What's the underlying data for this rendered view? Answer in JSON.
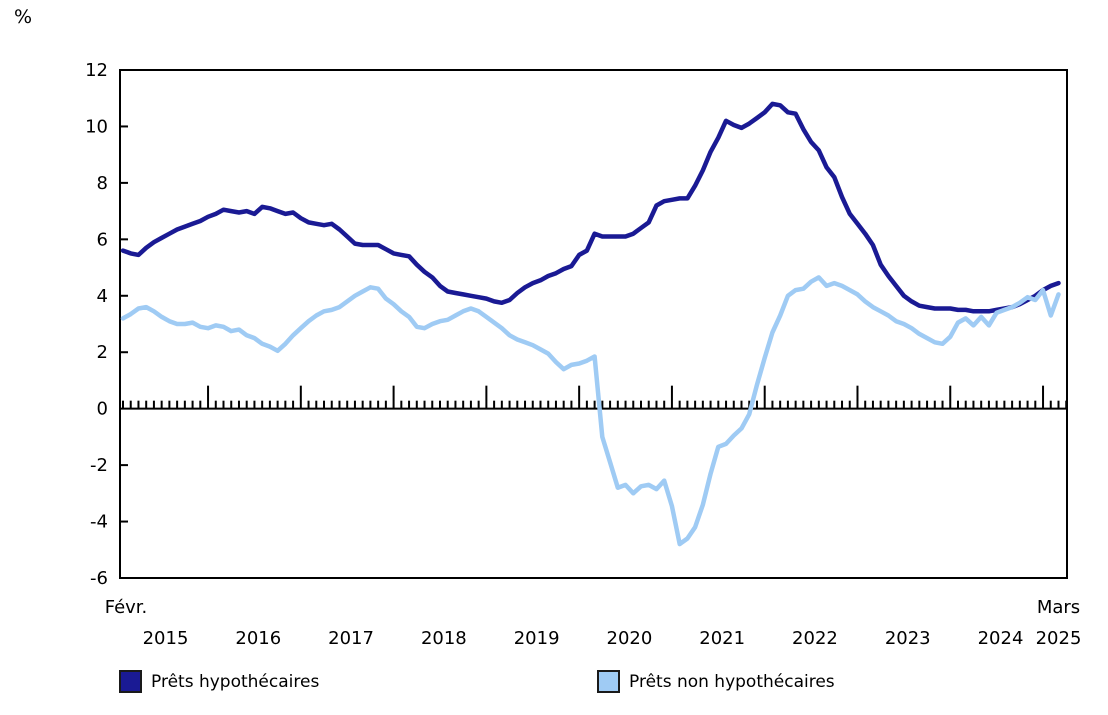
{
  "chart": {
    "unit_label": "%",
    "start_month_label": "Févr.",
    "end_month_label": "Mars",
    "axis_color": "#000000",
    "text_color": "#000000",
    "background": "#ffffff"
  },
  "chart_data": {
    "type": "line",
    "title": "",
    "ylabel": "%",
    "xlabel": "",
    "ylim": [
      -6,
      12
    ],
    "y_ticks": [
      12,
      10,
      8,
      6,
      4,
      2,
      0,
      -2,
      -4,
      -6
    ],
    "grid": false,
    "legend_position": "bottom",
    "frequency": "monthly",
    "x_start": "Févr. 2015",
    "x_end": "Mars 2025",
    "x_year_labels": [
      "2015",
      "2016",
      "2017",
      "2018",
      "2019",
      "2020",
      "2021",
      "2022",
      "2023",
      "2024",
      "2025"
    ],
    "series": [
      {
        "name": "Prêts hypothécaires",
        "color": "#1A1A94",
        "values": [
          5.6,
          5.5,
          5.45,
          5.7,
          5.9,
          6.05,
          6.2,
          6.35,
          6.45,
          6.55,
          6.65,
          6.8,
          6.9,
          7.05,
          7.0,
          6.95,
          7.0,
          6.9,
          7.15,
          7.1,
          7.0,
          6.9,
          6.95,
          6.75,
          6.6,
          6.55,
          6.5,
          6.55,
          6.35,
          6.1,
          5.85,
          5.8,
          5.8,
          5.8,
          5.65,
          5.5,
          5.45,
          5.4,
          5.1,
          4.85,
          4.65,
          4.35,
          4.15,
          4.1,
          4.05,
          4.0,
          3.95,
          3.9,
          3.8,
          3.75,
          3.85,
          4.1,
          4.3,
          4.45,
          4.55,
          4.7,
          4.8,
          4.95,
          5.05,
          5.45,
          5.6,
          6.2,
          6.1,
          6.1,
          6.1,
          6.1,
          6.2,
          6.4,
          6.6,
          7.2,
          7.35,
          7.4,
          7.45,
          7.45,
          7.9,
          8.45,
          9.1,
          9.6,
          10.2,
          10.05,
          9.95,
          10.1,
          10.3,
          10.5,
          10.8,
          10.75,
          10.5,
          10.45,
          9.9,
          9.45,
          9.15,
          8.55,
          8.2,
          7.5,
          6.9,
          6.55,
          6.2,
          5.8,
          5.1,
          4.7,
          4.35,
          4.0,
          3.8,
          3.65,
          3.6,
          3.55,
          3.55,
          3.55,
          3.5,
          3.5,
          3.45,
          3.45,
          3.45,
          3.5,
          3.55,
          3.6,
          3.7,
          3.85,
          4.0,
          4.2,
          4.35,
          4.45
        ]
      },
      {
        "name": "Prêts non hypothécaires",
        "color": "#9FCBF4",
        "values": [
          3.2,
          3.35,
          3.55,
          3.6,
          3.45,
          3.25,
          3.1,
          3.0,
          3.0,
          3.05,
          2.9,
          2.85,
          2.95,
          2.9,
          2.75,
          2.8,
          2.6,
          2.5,
          2.3,
          2.2,
          2.05,
          2.3,
          2.6,
          2.85,
          3.1,
          3.3,
          3.45,
          3.5,
          3.6,
          3.8,
          4.0,
          4.15,
          4.3,
          4.25,
          3.9,
          3.7,
          3.45,
          3.25,
          2.9,
          2.85,
          3.0,
          3.1,
          3.15,
          3.3,
          3.45,
          3.55,
          3.45,
          3.25,
          3.05,
          2.85,
          2.6,
          2.45,
          2.35,
          2.25,
          2.1,
          1.95,
          1.65,
          1.4,
          1.55,
          1.6,
          1.7,
          1.85,
          -1.0,
          -1.9,
          -2.8,
          -2.7,
          -3.0,
          -2.75,
          -2.7,
          -2.85,
          -2.55,
          -3.45,
          -4.8,
          -4.6,
          -4.2,
          -3.4,
          -2.3,
          -1.35,
          -1.25,
          -0.95,
          -0.7,
          -0.2,
          0.85,
          1.8,
          2.7,
          3.3,
          4.0,
          4.2,
          4.25,
          4.5,
          4.65,
          4.35,
          4.45,
          4.35,
          4.2,
          4.05,
          3.8,
          3.6,
          3.45,
          3.3,
          3.1,
          3.0,
          2.85,
          2.65,
          2.5,
          2.35,
          2.3,
          2.55,
          3.05,
          3.2,
          2.95,
          3.25,
          2.95,
          3.4,
          3.5,
          3.6,
          3.75,
          3.95,
          3.85,
          4.2,
          3.3,
          4.05
        ]
      }
    ]
  },
  "legend": {
    "items": [
      {
        "label": "Prêts hypothécaires"
      },
      {
        "label": "Prêts non hypothécaires"
      }
    ]
  }
}
